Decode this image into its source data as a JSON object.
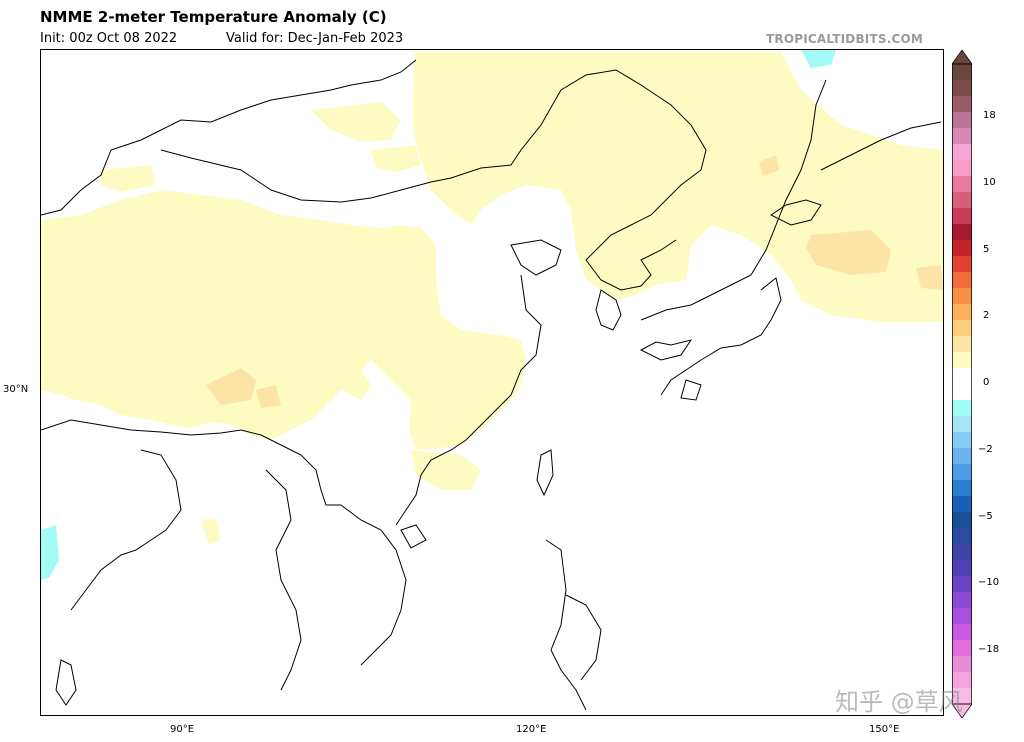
{
  "header": {
    "title": "NMME 2-meter Temperature Anomaly (C)",
    "init": "Init: 00z Oct 08 2022",
    "valid": "Valid for: Dec-Jan-Feb 2023",
    "brand": "TROPICALTIDBITS.COM"
  },
  "map": {
    "lat_label": "30°N",
    "lon_labels": [
      "90°E",
      "120°E",
      "150°E"
    ],
    "anomaly_colors": {
      "light_warm": "#fdfbc2",
      "warm": "#fce3a6",
      "cool": "#a3fbf5"
    }
  },
  "colorbar": {
    "tick_labels": [
      "18",
      "10",
      "5",
      "2",
      "0",
      "−2",
      "−5",
      "−10",
      "−18"
    ],
    "colors": [
      "#f8bce4",
      "#f2a5dc",
      "#e88cd6",
      "#e06fd9",
      "#c85ae0",
      "#a84fe0",
      "#8a4ad6",
      "#6b45c8",
      "#5040b5",
      "#3c44a8",
      "#2b4ba0",
      "#1c4e9a",
      "#1961b8",
      "#2a7ed0",
      "#4d9be6",
      "#6bb3ef",
      "#86cbf4",
      "#a6e4f6",
      "#a3fbf5",
      "#ffffff",
      "#ffffff",
      "#fdfbc2",
      "#fce3a6",
      "#fdcd7e",
      "#fbb05e",
      "#f89048",
      "#f26b3a",
      "#e34232",
      "#c6242c",
      "#a8182f",
      "#c93c57",
      "#d85e7a",
      "#ea7aa0",
      "#f99cc8",
      "#f5a6d3",
      "#d988b2",
      "#b97597",
      "#9a5c6b",
      "#7c4a4a",
      "#6b463e"
    ]
  },
  "watermark": "知乎 @草风"
}
